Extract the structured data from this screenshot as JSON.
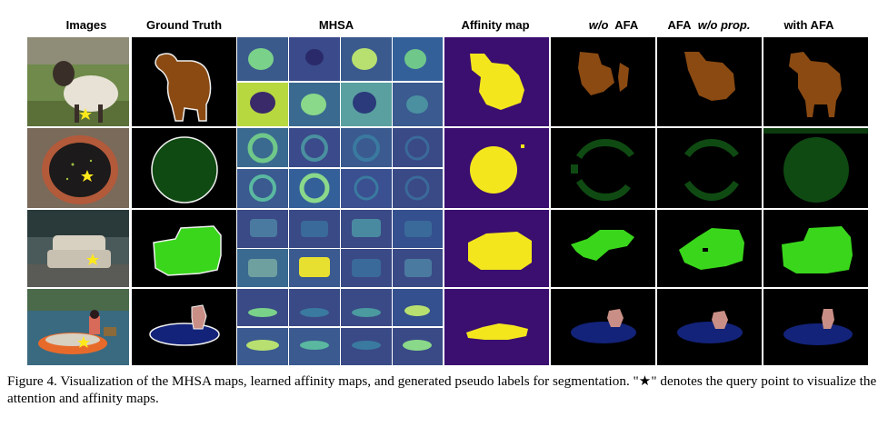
{
  "headers": {
    "images": "Images",
    "ground_truth": "Ground Truth",
    "mhsa": "MHSA",
    "affinity_map": "Affinity map",
    "wo_afa": {
      "italic": "w/o",
      "text": "AFA"
    },
    "afa_wo_prop": {
      "text": "AFA",
      "italic": "w/o prop."
    },
    "with_afa": "with AFA"
  },
  "caption": "Figure 4. Visualization of the MHSA maps, learned affinity maps, and generated pseudo labels for segmentation. \"★\" denotes the query point to visualize the attention and affinity maps.",
  "colors": {
    "sheep_label": "#8a4a12",
    "pot_label": "#0f4a12",
    "sofa_label": "#3ad61c",
    "boat_label": "#13237a",
    "person_label": "#c98f86",
    "affinity_bg": "#3b0f70",
    "affinity_fg": "#f4e61d",
    "query_star": "#ffe81a"
  }
}
